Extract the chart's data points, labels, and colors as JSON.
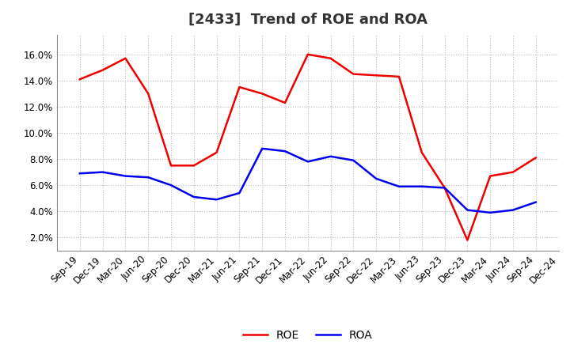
{
  "title": "[2433]  Trend of ROE and ROA",
  "x_labels": [
    "Sep-19",
    "Dec-19",
    "Mar-20",
    "Jun-20",
    "Sep-20",
    "Dec-20",
    "Mar-21",
    "Jun-21",
    "Sep-21",
    "Dec-21",
    "Mar-22",
    "Jun-22",
    "Sep-22",
    "Dec-22",
    "Mar-23",
    "Jun-23",
    "Sep-23",
    "Dec-23",
    "Mar-24",
    "Jun-24",
    "Sep-24",
    "Dec-24"
  ],
  "ROE": [
    14.1,
    14.8,
    15.7,
    13.0,
    7.5,
    7.5,
    8.5,
    13.5,
    13.0,
    12.3,
    16.0,
    15.7,
    14.5,
    14.4,
    14.3,
    8.5,
    5.8,
    1.8,
    6.7,
    7.0,
    8.1,
    null
  ],
  "ROA": [
    6.9,
    7.0,
    6.7,
    6.6,
    6.0,
    5.1,
    4.9,
    5.4,
    8.8,
    8.6,
    7.8,
    8.2,
    7.9,
    6.5,
    5.9,
    5.9,
    5.8,
    4.1,
    3.9,
    4.1,
    4.7,
    null
  ],
  "roe_color": "#EE0000",
  "roa_color": "#0000EE",
  "ylim_low": 0.01,
  "ylim_high": 0.175,
  "yticks": [
    0.02,
    0.04,
    0.06,
    0.08,
    0.1,
    0.12,
    0.14,
    0.16
  ],
  "background_color": "#FFFFFF",
  "plot_bg_color": "#FFFFFF",
  "grid_color": "#BBBBBB",
  "title_fontsize": 13,
  "axis_fontsize": 8.5,
  "legend_fontsize": 10,
  "line_width": 1.8
}
